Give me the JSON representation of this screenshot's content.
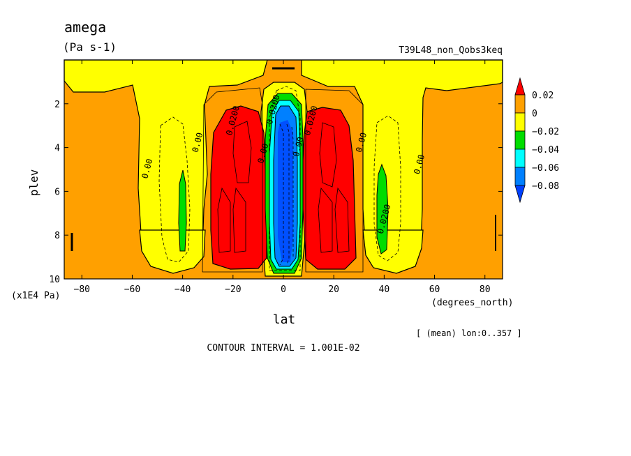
{
  "chart_data": {
    "type": "heatmap",
    "title": "amega",
    "units": "(Pa s-1)",
    "run_label": "T39L48_non_Qobs3keq",
    "xlabel": "lat",
    "x_units": "(degrees_north)",
    "ylabel": "plev",
    "y_units": "(x1E4 Pa)",
    "xlim": [
      -87,
      87
    ],
    "ylim": [
      10,
      0
    ],
    "x_ticks": [
      -80,
      -60,
      -40,
      -20,
      0,
      20,
      40,
      60,
      80
    ],
    "x_tick_labels": [
      "−80",
      "−60",
      "−40",
      "−20",
      "0",
      "20",
      "40",
      "60",
      "80"
    ],
    "y_ticks": [
      2,
      4,
      6,
      8,
      10
    ],
    "y_tick_labels": [
      "2",
      "4",
      "6",
      "8",
      "10"
    ],
    "averaging_note": "[ (mean) lon:0..357 ]",
    "contour_interval_text": "CONTOUR INTERVAL = 1.001E-02",
    "colorbar": {
      "levels": [
        0.02,
        0,
        -0.02,
        -0.04,
        -0.06,
        -0.08
      ],
      "labels": [
        "0.02",
        "0",
        "−0.02",
        "−0.04",
        "−0.06",
        "−0.08"
      ],
      "colors": [
        "#ff0000",
        "#ffa000",
        "#ffff00",
        "#00dd00",
        "#00ffff",
        "#0080ff",
        "#0040ff"
      ]
    },
    "contour_labels": [
      {
        "text": "0.00",
        "lat": -53,
        "plev": 5.0
      },
      {
        "text": "0.00",
        "lat": -33,
        "plev": 3.8
      },
      {
        "text": "0.0200",
        "lat": -19,
        "plev": 2.8
      },
      {
        "text": "0.00",
        "lat": -7,
        "plev": 4.3
      },
      {
        "text": "0.0200",
        "lat": -3,
        "plev": 2.3
      },
      {
        "text": "0.00",
        "lat": 7,
        "plev": 4.0
      },
      {
        "text": "0.0200",
        "lat": 12,
        "plev": 2.8
      },
      {
        "text": "0.00",
        "lat": 32,
        "plev": 3.8
      },
      {
        "text": "0.0200",
        "lat": 41,
        "plev": 7.3
      },
      {
        "text": "0.00",
        "lat": 55,
        "plev": 4.8
      }
    ]
  }
}
